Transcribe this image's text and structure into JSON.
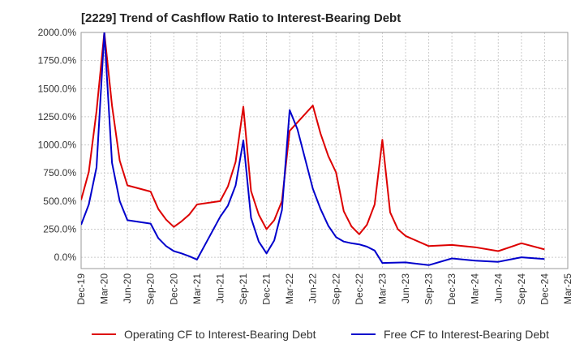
{
  "title": "[2229]  Trend of Cashflow Ratio to Interest-Bearing Debt",
  "legend": {
    "series1_label": "Operating CF to Interest-Bearing Debt",
    "series2_label": "Free CF to Interest-Bearing Debt"
  },
  "colors": {
    "series1": "#dd0000",
    "series2": "#0000cc",
    "grid": "#cccccc",
    "axis": "#999999"
  },
  "chart_data": {
    "type": "line",
    "title": "[2229]  Trend of Cashflow Ratio to Interest-Bearing Debt",
    "xlabel": "",
    "ylabel": "",
    "ylim": [
      -100,
      2000
    ],
    "yticks": [
      0,
      250,
      500,
      750,
      1000,
      1250,
      1500,
      1750,
      2000
    ],
    "ytick_labels": [
      "0.0%",
      "250.0%",
      "500.0%",
      "750.0%",
      "1000.0%",
      "1250.0%",
      "1500.0%",
      "1750.0%",
      "2000.0%"
    ],
    "x_tick_labels": [
      "Dec-19",
      "Mar-20",
      "Jun-20",
      "Sep-20",
      "Dec-20",
      "Mar-21",
      "Jun-21",
      "Sep-21",
      "Dec-21",
      "Mar-22",
      "Jun-22",
      "Sep-22",
      "Dec-22",
      "Mar-23",
      "Jun-23",
      "Sep-23",
      "Dec-23",
      "Mar-24",
      "Jun-24",
      "Sep-24",
      "Dec-24",
      "Mar-25"
    ],
    "grid": true,
    "legend_position": "bottom",
    "series": [
      {
        "name": "Operating CF to Interest-Bearing Debt",
        "color": "#dd0000",
        "points": [
          [
            "Dec-19",
            510
          ],
          [
            "Jan-20",
            760
          ],
          [
            "Feb-20",
            1300
          ],
          [
            "Mar-20",
            2000
          ],
          [
            "Apr-20",
            1350
          ],
          [
            "May-20",
            860
          ],
          [
            "Jun-20",
            640
          ],
          [
            "Sep-20",
            585
          ],
          [
            "Oct-20",
            430
          ],
          [
            "Nov-20",
            335
          ],
          [
            "Dec-20",
            270
          ],
          [
            "Jan-21",
            320
          ],
          [
            "Feb-21",
            380
          ],
          [
            "Mar-21",
            470
          ],
          [
            "Jun-21",
            500
          ],
          [
            "Jul-21",
            630
          ],
          [
            "Aug-21",
            850
          ],
          [
            "Sep-21",
            1340
          ],
          [
            "Oct-21",
            590
          ],
          [
            "Nov-21",
            380
          ],
          [
            "Dec-21",
            250
          ],
          [
            "Jan-22",
            330
          ],
          [
            "Feb-22",
            500
          ],
          [
            "Mar-22",
            1125
          ],
          [
            "Jun-22",
            1350
          ],
          [
            "Jul-22",
            1100
          ],
          [
            "Aug-22",
            900
          ],
          [
            "Sep-22",
            755
          ],
          [
            "Oct-22",
            410
          ],
          [
            "Nov-22",
            275
          ],
          [
            "Dec-22",
            205
          ],
          [
            "Jan-23",
            290
          ],
          [
            "Feb-23",
            470
          ],
          [
            "Mar-23",
            1045
          ],
          [
            "Apr-23",
            400
          ],
          [
            "May-23",
            250
          ],
          [
            "Jun-23",
            190
          ],
          [
            "Sep-23",
            100
          ],
          [
            "Dec-23",
            110
          ],
          [
            "Mar-24",
            90
          ],
          [
            "Jun-24",
            55
          ],
          [
            "Sep-24",
            125
          ],
          [
            "Dec-24",
            70
          ]
        ]
      },
      {
        "name": "Free CF to Interest-Bearing Debt",
        "color": "#0000cc",
        "points": [
          [
            "Dec-19",
            290
          ],
          [
            "Jan-20",
            470
          ],
          [
            "Feb-20",
            800
          ],
          [
            "Mar-20",
            2000
          ],
          [
            "Apr-20",
            840
          ],
          [
            "May-20",
            500
          ],
          [
            "Jun-20",
            330
          ],
          [
            "Sep-20",
            300
          ],
          [
            "Oct-20",
            170
          ],
          [
            "Nov-20",
            100
          ],
          [
            "Dec-20",
            55
          ],
          [
            "Jan-21",
            35
          ],
          [
            "Feb-21",
            10
          ],
          [
            "Mar-21",
            -20
          ],
          [
            "Jun-21",
            360
          ],
          [
            "Jul-21",
            460
          ],
          [
            "Aug-21",
            640
          ],
          [
            "Sep-21",
            1040
          ],
          [
            "Oct-21",
            350
          ],
          [
            "Nov-21",
            140
          ],
          [
            "Dec-21",
            35
          ],
          [
            "Jan-22",
            150
          ],
          [
            "Feb-22",
            420
          ],
          [
            "Mar-22",
            1310
          ],
          [
            "Apr-22",
            1140
          ],
          [
            "Jun-22",
            610
          ],
          [
            "Jul-22",
            430
          ],
          [
            "Aug-22",
            280
          ],
          [
            "Sep-22",
            180
          ],
          [
            "Oct-22",
            140
          ],
          [
            "Nov-22",
            125
          ],
          [
            "Dec-22",
            115
          ],
          [
            "Jan-23",
            95
          ],
          [
            "Feb-23",
            60
          ],
          [
            "Mar-23",
            -50
          ],
          [
            "Jun-23",
            -45
          ],
          [
            "Sep-23",
            -70
          ],
          [
            "Dec-23",
            -10
          ],
          [
            "Mar-24",
            -30
          ],
          [
            "Jun-24",
            -40
          ],
          [
            "Sep-24",
            0
          ],
          [
            "Dec-24",
            -15
          ]
        ]
      }
    ]
  }
}
